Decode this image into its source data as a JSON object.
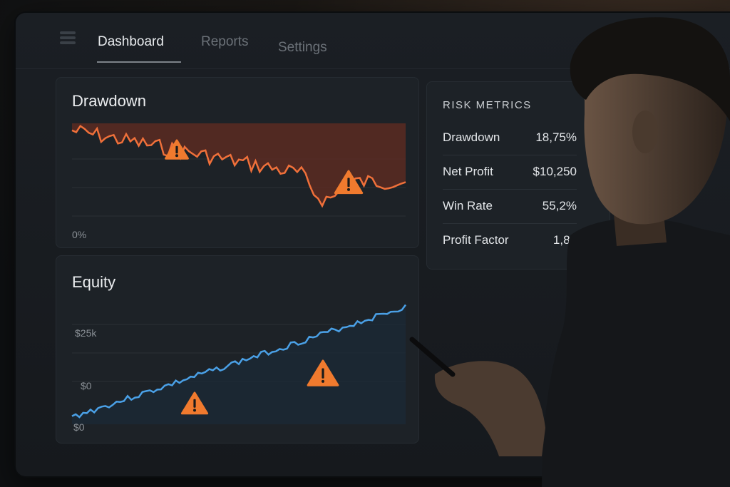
{
  "nav": {
    "tabs": [
      {
        "label": "Dashboard",
        "active": true
      },
      {
        "label": "Reports",
        "active": false
      },
      {
        "label": "Settings",
        "active": false
      }
    ]
  },
  "drawdown_card": {
    "title": "Drawdown",
    "y_label_bottom": "0%",
    "line_color": "#f0703a",
    "fill_color": "#5a2a22",
    "warning_icons": 2
  },
  "equity_card": {
    "title": "Equity",
    "tick_labels": [
      "$25k",
      "$0",
      "$0"
    ],
    "line_color": "#4aa0e6",
    "warning_icons": 2
  },
  "risk_metrics": {
    "title": "RISK METRICS",
    "rows": [
      {
        "label": "Drawdown",
        "value": "18,75%"
      },
      {
        "label": "Net Profit",
        "value": "$10,250"
      },
      {
        "label": "Win Rate",
        "value": "55,2%"
      },
      {
        "label": "Profit Factor",
        "value": "1,85"
      }
    ]
  },
  "icons": [
    "menu-icon",
    "warning-icon",
    "stylus"
  ],
  "accent_colors": {
    "warning": "#f07a2e",
    "background": "#16191d"
  }
}
